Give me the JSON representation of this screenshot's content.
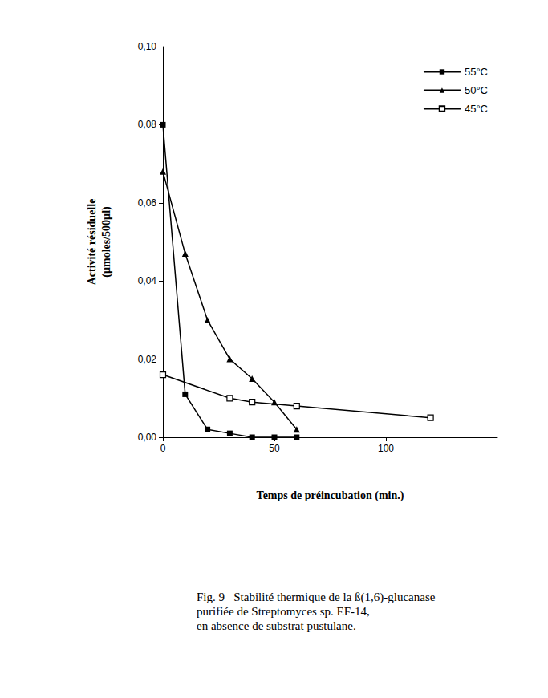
{
  "chart_data": {
    "type": "line",
    "title": "Fig. 9   Stabilité thermique de la ß(1,6)-glucanase\npurifiée de Streptomyces sp. EF-14,\nen absence de substrat pustulane.",
    "x_label": "Temps de préincubation (min.)",
    "y_label": "Activité résiduelle\n(µmoles/500µl)",
    "xlim": [
      0,
      150
    ],
    "xticks": [
      0,
      50,
      100
    ],
    "ylim": [
      0,
      0.1
    ],
    "yticks": [
      {
        "value": 0,
        "label": "0,00"
      },
      {
        "value": 0.02,
        "label": "0,02"
      },
      {
        "value": 0.04,
        "label": "0,04"
      },
      {
        "value": 0.06,
        "label": "0,06"
      },
      {
        "value": 0.08,
        "label": "0,08"
      },
      {
        "value": 0.1,
        "label": "0,10"
      }
    ],
    "grid": false,
    "legend": "upper right",
    "series": [
      {
        "name": "55°C",
        "color": "#000000",
        "marker": "square",
        "x": [
          0,
          10,
          20,
          30,
          40,
          50,
          60
        ],
        "values": [
          0.08,
          0.011,
          0.002,
          0.001,
          0.0,
          0.0,
          0.0
        ]
      },
      {
        "name": "50°C",
        "color": "#000000",
        "marker": "triangle",
        "x": [
          0,
          10,
          20,
          30,
          40,
          50,
          60
        ],
        "values": [
          0.068,
          0.047,
          0.03,
          0.02,
          0.015,
          0.009,
          0.002
        ]
      },
      {
        "name": "45°C",
        "color": "#000000",
        "marker": "square-open",
        "x": [
          0,
          30,
          40,
          60,
          120
        ],
        "values": [
          0.016,
          0.01,
          0.009,
          0.008,
          0.005
        ]
      }
    ]
  }
}
